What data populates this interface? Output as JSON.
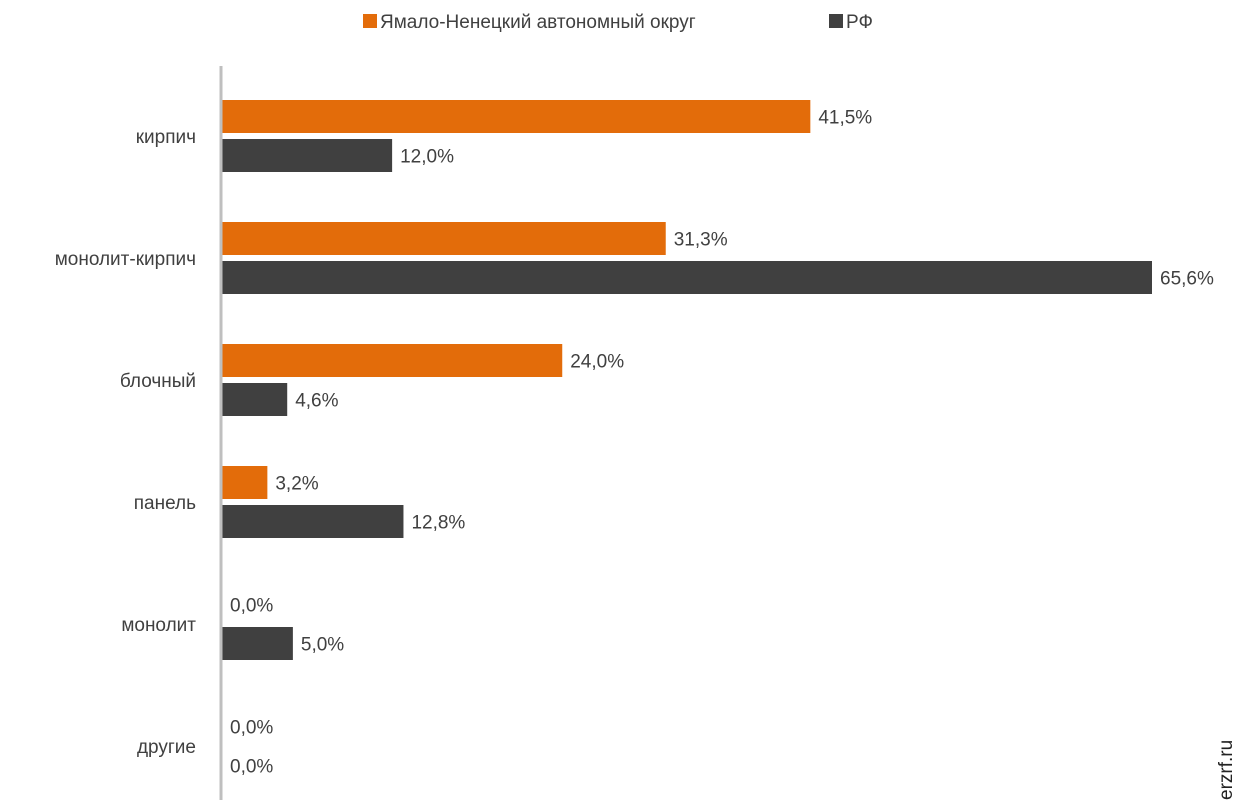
{
  "chart_data": {
    "type": "bar",
    "orientation": "horizontal",
    "categories": [
      "кирпич",
      "монолит-кирпич",
      "блочный",
      "панель",
      "монолит",
      "другие"
    ],
    "series": [
      {
        "name": "Ямало-Ненецкий автономный округ",
        "color": "#e36c0a",
        "values": [
          41.5,
          31.3,
          24.0,
          3.2,
          0.0,
          0.0
        ],
        "labels": [
          "41,5%",
          "31,3%",
          "24,0%",
          "3,2%",
          "0,0%",
          "0,0%"
        ]
      },
      {
        "name": "РФ",
        "color": "#404040",
        "values": [
          12.0,
          65.6,
          4.6,
          12.8,
          5.0,
          0.0
        ],
        "labels": [
          "12,0%",
          "65,6%",
          "4,6%",
          "12,8%",
          "5,0%",
          "0,0%"
        ]
      }
    ],
    "xlim": [
      0,
      65.6
    ],
    "legend_position": "top-center",
    "grid": false
  },
  "watermark": "erzrf.ru"
}
